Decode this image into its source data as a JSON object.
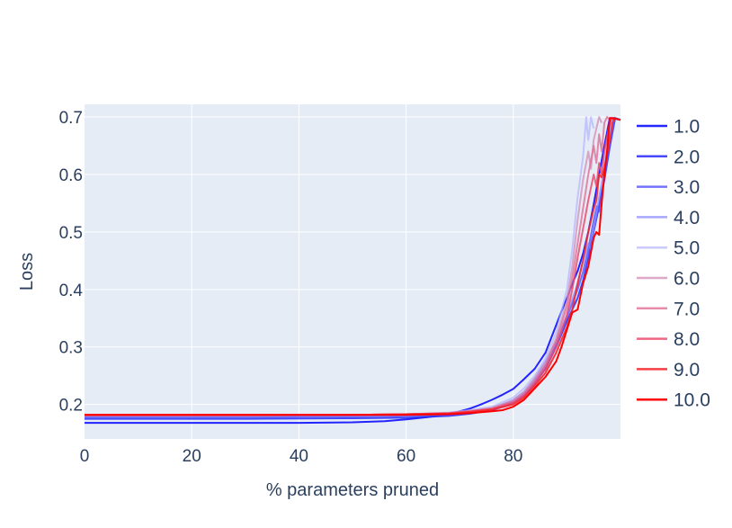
{
  "chart_data": {
    "type": "line",
    "title": "",
    "xlabel": "% parameters pruned",
    "ylabel": "Loss",
    "xlim": [
      0,
      100
    ],
    "ylim": [
      0.14,
      0.722
    ],
    "xticks": [
      "0",
      "20",
      "40",
      "60",
      "80"
    ],
    "yticks": [
      "0.2",
      "0.3",
      "0.4",
      "0.5",
      "0.6",
      "0.7"
    ],
    "grid": true,
    "legend_position": "right",
    "plot_background": "#e5ecf6",
    "grid_color": "#ffffff",
    "series": [
      {
        "name": "1.0",
        "color": "#0000ff",
        "opacity": 0.85,
        "points": [
          [
            0,
            0.168
          ],
          [
            20,
            0.168
          ],
          [
            40,
            0.168
          ],
          [
            50,
            0.169
          ],
          [
            56,
            0.171
          ],
          [
            60,
            0.174
          ],
          [
            64,
            0.178
          ],
          [
            68,
            0.183
          ],
          [
            72,
            0.193
          ],
          [
            74,
            0.2
          ],
          [
            76,
            0.208
          ],
          [
            78,
            0.217
          ],
          [
            80,
            0.227
          ],
          [
            82,
            0.244
          ],
          [
            84,
            0.262
          ],
          [
            86,
            0.29
          ],
          [
            88,
            0.338
          ],
          [
            89,
            0.362
          ],
          [
            90,
            0.385
          ],
          [
            91,
            0.41
          ],
          [
            92,
            0.432
          ],
          [
            93,
            0.462
          ],
          [
            94,
            0.5
          ],
          [
            95,
            0.548
          ],
          [
            96,
            0.6
          ],
          [
            97,
            0.65
          ],
          [
            98,
            0.698
          ],
          [
            99,
            0.698
          ],
          [
            100,
            0.695
          ]
        ]
      },
      {
        "name": "2.0",
        "color": "#2828ff",
        "opacity": 0.85,
        "points": [
          [
            0,
            0.175
          ],
          [
            30,
            0.175
          ],
          [
            50,
            0.176
          ],
          [
            60,
            0.177
          ],
          [
            68,
            0.18
          ],
          [
            72,
            0.184
          ],
          [
            76,
            0.19
          ],
          [
            78,
            0.196
          ],
          [
            80,
            0.203
          ],
          [
            82,
            0.215
          ],
          [
            84,
            0.236
          ],
          [
            86,
            0.262
          ],
          [
            88,
            0.3
          ],
          [
            90,
            0.345
          ],
          [
            92,
            0.385
          ],
          [
            93,
            0.415
          ],
          [
            94,
            0.455
          ],
          [
            95,
            0.5
          ],
          [
            96,
            0.545
          ],
          [
            97,
            0.592
          ],
          [
            98,
            0.648
          ],
          [
            99,
            0.698
          ],
          [
            100,
            0.695
          ]
        ]
      },
      {
        "name": "3.0",
        "color": "#5050ff",
        "opacity": 0.8,
        "points": [
          [
            0,
            0.178
          ],
          [
            30,
            0.178
          ],
          [
            50,
            0.179
          ],
          [
            60,
            0.18
          ],
          [
            68,
            0.182
          ],
          [
            72,
            0.186
          ],
          [
            76,
            0.191
          ],
          [
            80,
            0.205
          ],
          [
            82,
            0.218
          ],
          [
            84,
            0.24
          ],
          [
            86,
            0.268
          ],
          [
            88,
            0.305
          ],
          [
            90,
            0.352
          ],
          [
            92,
            0.4
          ],
          [
            93,
            0.43
          ],
          [
            94,
            0.47
          ],
          [
            95,
            0.52
          ],
          [
            95.6,
            0.545
          ],
          [
            96,
            0.535
          ],
          [
            96.5,
            0.57
          ],
          [
            97,
            0.59
          ],
          [
            98,
            0.65
          ],
          [
            99,
            0.698
          ]
        ]
      },
      {
        "name": "4.0",
        "color": "#8282ff",
        "opacity": 0.7,
        "points": [
          [
            0,
            0.18
          ],
          [
            30,
            0.18
          ],
          [
            50,
            0.18
          ],
          [
            60,
            0.181
          ],
          [
            68,
            0.183
          ],
          [
            72,
            0.187
          ],
          [
            76,
            0.193
          ],
          [
            80,
            0.208
          ],
          [
            82,
            0.222
          ],
          [
            84,
            0.245
          ],
          [
            86,
            0.275
          ],
          [
            88,
            0.31
          ],
          [
            90,
            0.355
          ],
          [
            92,
            0.41
          ],
          [
            93,
            0.45
          ],
          [
            94,
            0.48
          ],
          [
            94.5,
            0.47
          ],
          [
            95,
            0.5
          ],
          [
            96,
            0.56
          ],
          [
            97,
            0.61
          ],
          [
            98,
            0.68
          ],
          [
            98.5,
            0.698
          ]
        ]
      },
      {
        "name": "5.0",
        "color": "#b4b4ff",
        "opacity": 0.7,
        "points": [
          [
            0,
            0.181
          ],
          [
            30,
            0.181
          ],
          [
            50,
            0.182
          ],
          [
            60,
            0.183
          ],
          [
            68,
            0.186
          ],
          [
            72,
            0.19
          ],
          [
            76,
            0.196
          ],
          [
            80,
            0.212
          ],
          [
            82,
            0.228
          ],
          [
            84,
            0.25
          ],
          [
            86,
            0.28
          ],
          [
            88,
            0.325
          ],
          [
            90,
            0.4
          ],
          [
            91,
            0.47
          ],
          [
            92,
            0.56
          ],
          [
            93,
            0.63
          ],
          [
            93.6,
            0.7
          ],
          [
            94,
            0.66
          ],
          [
            94.5,
            0.7
          ],
          [
            95,
            0.68
          ]
        ]
      },
      {
        "name": "6.0",
        "color": "#d28cb4",
        "opacity": 0.75,
        "points": [
          [
            0,
            0.181
          ],
          [
            30,
            0.181
          ],
          [
            50,
            0.182
          ],
          [
            60,
            0.183
          ],
          [
            68,
            0.185
          ],
          [
            72,
            0.189
          ],
          [
            76,
            0.194
          ],
          [
            80,
            0.207
          ],
          [
            82,
            0.222
          ],
          [
            84,
            0.245
          ],
          [
            86,
            0.272
          ],
          [
            88,
            0.315
          ],
          [
            90,
            0.38
          ],
          [
            91,
            0.44
          ],
          [
            92,
            0.52
          ],
          [
            93,
            0.59
          ],
          [
            94,
            0.64
          ],
          [
            94.5,
            0.61
          ],
          [
            95,
            0.66
          ],
          [
            96,
            0.7
          ],
          [
            96.5,
            0.69
          ]
        ]
      },
      {
        "name": "7.0",
        "color": "#e16e96",
        "opacity": 0.8,
        "points": [
          [
            0,
            0.181
          ],
          [
            30,
            0.181
          ],
          [
            50,
            0.182
          ],
          [
            60,
            0.183
          ],
          [
            68,
            0.185
          ],
          [
            72,
            0.188
          ],
          [
            76,
            0.193
          ],
          [
            80,
            0.205
          ],
          [
            82,
            0.218
          ],
          [
            84,
            0.24
          ],
          [
            86,
            0.268
          ],
          [
            88,
            0.31
          ],
          [
            90,
            0.37
          ],
          [
            91,
            0.42
          ],
          [
            92,
            0.48
          ],
          [
            93,
            0.54
          ],
          [
            94,
            0.6
          ],
          [
            95,
            0.65
          ],
          [
            95.5,
            0.62
          ],
          [
            96,
            0.67
          ],
          [
            96.5,
            0.64
          ],
          [
            97,
            0.69
          ],
          [
            97.5,
            0.7
          ],
          [
            98,
            0.695
          ]
        ]
      },
      {
        "name": "8.0",
        "color": "#eb4b6e",
        "opacity": 0.85,
        "points": [
          [
            0,
            0.182
          ],
          [
            30,
            0.182
          ],
          [
            50,
            0.182
          ],
          [
            60,
            0.183
          ],
          [
            68,
            0.185
          ],
          [
            72,
            0.188
          ],
          [
            76,
            0.192
          ],
          [
            80,
            0.203
          ],
          [
            82,
            0.215
          ],
          [
            84,
            0.236
          ],
          [
            86,
            0.262
          ],
          [
            88,
            0.3
          ],
          [
            90,
            0.355
          ],
          [
            91,
            0.4
          ],
          [
            92,
            0.455
          ],
          [
            93,
            0.505
          ],
          [
            94,
            0.555
          ],
          [
            95,
            0.6
          ],
          [
            95.5,
            0.58
          ],
          [
            96,
            0.62
          ],
          [
            96.5,
            0.6
          ],
          [
            97,
            0.64
          ],
          [
            98,
            0.69
          ],
          [
            98.5,
            0.7
          ]
        ]
      },
      {
        "name": "9.0",
        "color": "#f5282d",
        "opacity": 0.9,
        "points": [
          [
            0,
            0.182
          ],
          [
            30,
            0.182
          ],
          [
            50,
            0.182
          ],
          [
            60,
            0.183
          ],
          [
            68,
            0.184
          ],
          [
            72,
            0.187
          ],
          [
            76,
            0.191
          ],
          [
            80,
            0.2
          ],
          [
            82,
            0.212
          ],
          [
            84,
            0.232
          ],
          [
            86,
            0.255
          ],
          [
            88,
            0.29
          ],
          [
            90,
            0.335
          ],
          [
            91,
            0.365
          ],
          [
            92,
            0.41
          ],
          [
            93,
            0.45
          ],
          [
            94,
            0.5
          ],
          [
            95,
            0.54
          ],
          [
            95.5,
            0.555
          ],
          [
            96,
            0.6
          ],
          [
            96.5,
            0.595
          ],
          [
            97,
            0.61
          ],
          [
            98,
            0.66
          ],
          [
            98.5,
            0.69
          ],
          [
            99,
            0.7
          ]
        ]
      },
      {
        "name": "10.0",
        "color": "#ff0000",
        "opacity": 1.0,
        "points": [
          [
            0,
            0.182
          ],
          [
            30,
            0.182
          ],
          [
            50,
            0.182
          ],
          [
            60,
            0.182
          ],
          [
            68,
            0.183
          ],
          [
            72,
            0.185
          ],
          [
            76,
            0.188
          ],
          [
            78,
            0.19
          ],
          [
            80,
            0.196
          ],
          [
            82,
            0.208
          ],
          [
            84,
            0.228
          ],
          [
            86,
            0.248
          ],
          [
            88,
            0.275
          ],
          [
            89,
            0.3
          ],
          [
            90,
            0.33
          ],
          [
            91,
            0.36
          ],
          [
            92,
            0.365
          ],
          [
            93,
            0.41
          ],
          [
            94,
            0.44
          ],
          [
            95,
            0.49
          ],
          [
            95.5,
            0.5
          ],
          [
            96,
            0.495
          ],
          [
            96.5,
            0.55
          ],
          [
            97,
            0.6
          ],
          [
            97.5,
            0.64
          ],
          [
            98,
            0.698
          ],
          [
            99,
            0.697
          ],
          [
            100,
            0.695
          ]
        ]
      }
    ]
  }
}
